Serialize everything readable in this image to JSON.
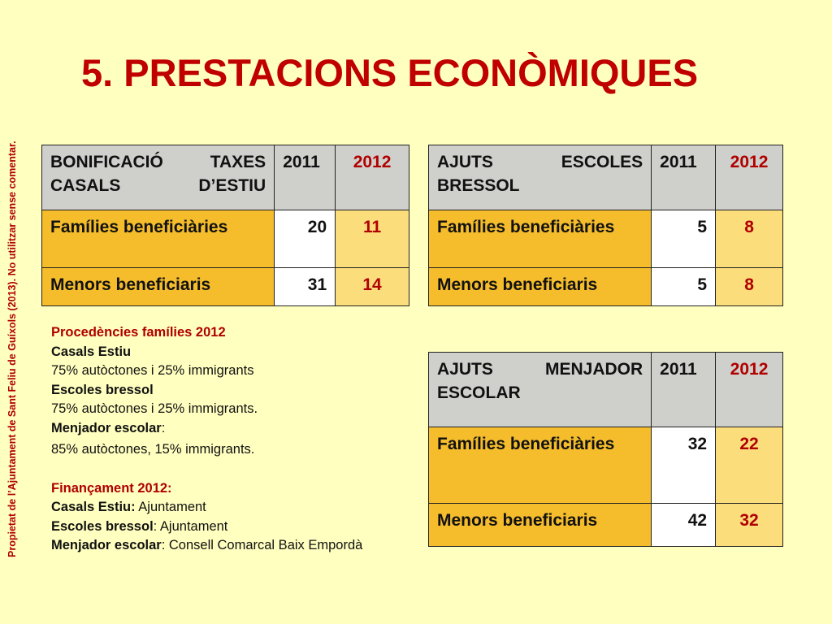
{
  "side_note": "Propietat de l’Ajuntament de Sant Feliu de Guíxols (2013). No utilitzar sense comentar.",
  "title": "5. PRESTACIONS ECONÒMIQUES",
  "tables": [
    {
      "header": {
        "label": "BONIFICACIÓ TAXES CASALS D’ESTIU",
        "y2011": "2011",
        "y2012": "2012"
      },
      "rows": [
        {
          "label": "Famílies beneficiàries",
          "v2011": "20",
          "v2012": "11"
        },
        {
          "label": "Menors beneficiaris",
          "v2011": "31",
          "v2012": "14"
        }
      ]
    },
    {
      "header": {
        "label": "AJUTS ESCOLES BRESSOL",
        "y2011": "2011",
        "y2012": "2012"
      },
      "rows": [
        {
          "label": "Famílies beneficiàries",
          "v2011": "5",
          "v2012": "8"
        },
        {
          "label": "Menors beneficiaris",
          "v2011": "5",
          "v2012": "8"
        }
      ]
    },
    {
      "header": {
        "label": "AJUTS MENJADOR ESCOLAR",
        "y2011": "2011",
        "y2012": "2012"
      },
      "rows": [
        {
          "label": "Famílies beneficiàries",
          "v2011": "32",
          "v2012": "22"
        },
        {
          "label": "Menors beneficiaris",
          "v2011": "42",
          "v2012": "32"
        }
      ]
    }
  ],
  "notes": {
    "origin_heading": "Procedències famílies 2012",
    "casals_label": "Casals Estiu",
    "casals_value": "75% autòctones i 25% immigrants",
    "bressol_label": "Escoles bressol",
    "bressol_value": "75% autòctones i 25% immigrants.",
    "menjador_label": "Menjador escolar",
    "menjador_colon": ":",
    "menjador_value": "85% autòctones, 15% immigrants.",
    "funding_heading": "Finançament 2012:",
    "f_casals_label": "Casals Estiu:",
    "f_casals_value": " Ajuntament",
    "f_bressol_label": "Escoles bressol",
    "f_bressol_value": ": Ajuntament",
    "f_menjador_label": "Menjador escolar",
    "f_menjador_value": ":  Consell Comarcal Baix Empordà"
  }
}
